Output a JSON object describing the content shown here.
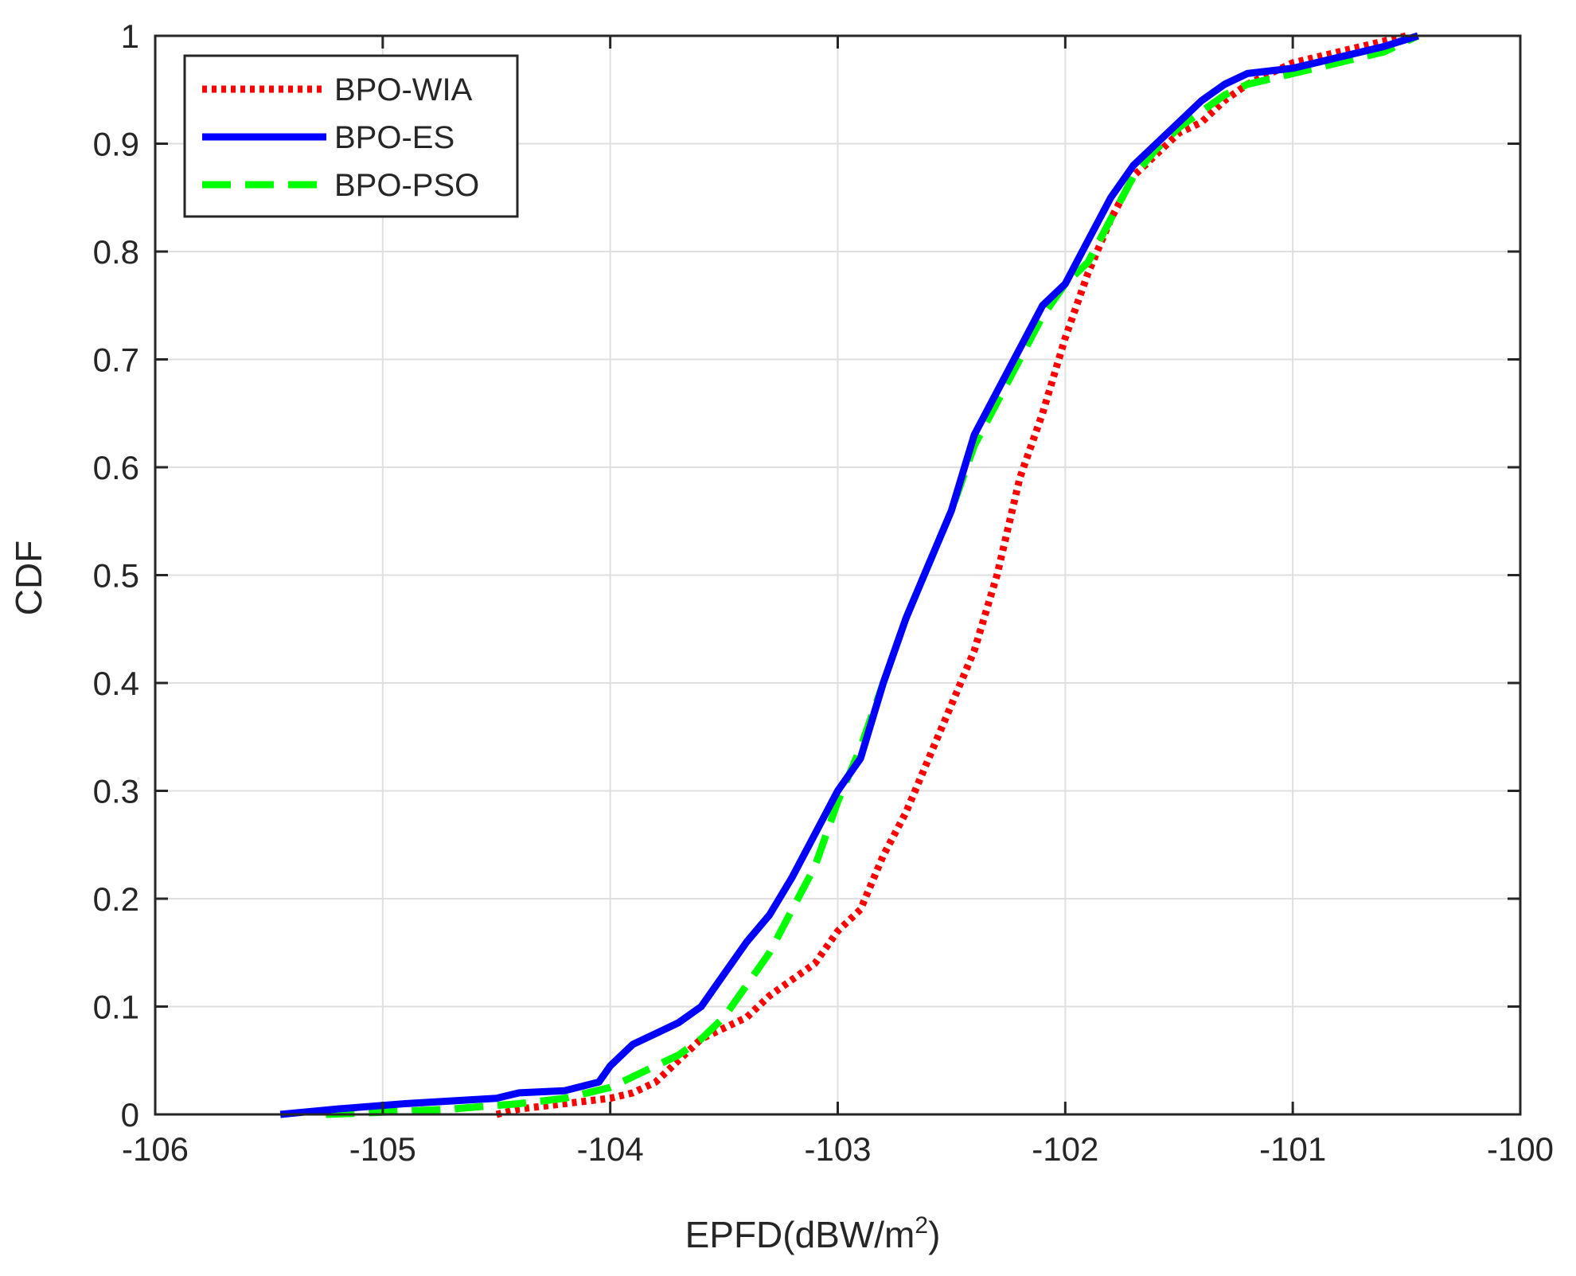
{
  "chart_data": {
    "type": "line",
    "title": "",
    "xlabel": "EPFD(dBW/m",
    "xlabel_superscript": "2",
    "xlabel_suffix": ")",
    "ylabel": "CDF",
    "xlim": [
      -106,
      -100
    ],
    "ylim": [
      0,
      1
    ],
    "xticks": [
      -106,
      -105,
      -104,
      -103,
      -102,
      -101,
      -100
    ],
    "xtick_labels": [
      "-106",
      "-105",
      "-104",
      "-103",
      "-102",
      "-101",
      "-100"
    ],
    "yticks": [
      0,
      0.1,
      0.2,
      0.3,
      0.4,
      0.5,
      0.6,
      0.7,
      0.8,
      0.9,
      1
    ],
    "ytick_labels": [
      "0",
      "0.1",
      "0.2",
      "0.3",
      "0.4",
      "0.5",
      "0.6",
      "0.7",
      "0.8",
      "0.9",
      "1"
    ],
    "grid": true,
    "legend_position": "top-left",
    "series": [
      {
        "name": "BPO-WIA",
        "color": "#ff0000",
        "style": "dotted",
        "x": [
          -104.5,
          -104.4,
          -104.2,
          -104.0,
          -103.9,
          -103.8,
          -103.7,
          -103.6,
          -103.5,
          -103.4,
          -103.3,
          -103.2,
          -103.1,
          -103.0,
          -102.9,
          -102.8,
          -102.7,
          -102.6,
          -102.5,
          -102.4,
          -102.3,
          -102.2,
          -102.1,
          -102.0,
          -101.9,
          -101.8,
          -101.7,
          -101.6,
          -101.5,
          -101.4,
          -101.3,
          -101.2,
          -101.1,
          -101.0,
          -100.8,
          -100.6,
          -100.5
        ],
        "y": [
          0,
          0.005,
          0.01,
          0.015,
          0.02,
          0.03,
          0.05,
          0.07,
          0.08,
          0.09,
          0.11,
          0.125,
          0.14,
          0.17,
          0.19,
          0.24,
          0.28,
          0.33,
          0.38,
          0.43,
          0.5,
          0.59,
          0.65,
          0.72,
          0.78,
          0.83,
          0.87,
          0.89,
          0.91,
          0.92,
          0.94,
          0.955,
          0.965,
          0.975,
          0.985,
          0.995,
          1.0
        ]
      },
      {
        "name": "BPO-ES",
        "color": "#0000ff",
        "style": "solid",
        "x": [
          -105.45,
          -105.2,
          -104.9,
          -104.5,
          -104.4,
          -104.2,
          -104.05,
          -104.0,
          -103.9,
          -103.8,
          -103.7,
          -103.6,
          -103.5,
          -103.4,
          -103.3,
          -103.2,
          -103.1,
          -103.0,
          -102.9,
          -102.8,
          -102.7,
          -102.6,
          -102.5,
          -102.4,
          -102.3,
          -102.2,
          -102.1,
          -102.0,
          -101.9,
          -101.8,
          -101.7,
          -101.6,
          -101.5,
          -101.4,
          -101.3,
          -101.2,
          -101.0,
          -100.8,
          -100.6,
          -100.45
        ],
        "y": [
          0,
          0.005,
          0.01,
          0.015,
          0.02,
          0.022,
          0.03,
          0.045,
          0.065,
          0.075,
          0.085,
          0.1,
          0.13,
          0.16,
          0.185,
          0.22,
          0.26,
          0.3,
          0.33,
          0.4,
          0.46,
          0.51,
          0.56,
          0.63,
          0.67,
          0.71,
          0.75,
          0.77,
          0.81,
          0.85,
          0.88,
          0.9,
          0.92,
          0.94,
          0.955,
          0.965,
          0.97,
          0.98,
          0.99,
          1.0
        ]
      },
      {
        "name": "BPO-PSO",
        "color": "#00ff00",
        "style": "dashed",
        "x": [
          -105.25,
          -105.0,
          -104.7,
          -104.4,
          -104.2,
          -104.0,
          -103.9,
          -103.8,
          -103.7,
          -103.6,
          -103.5,
          -103.4,
          -103.3,
          -103.2,
          -103.1,
          -103.0,
          -102.9,
          -102.8,
          -102.7,
          -102.6,
          -102.5,
          -102.4,
          -102.3,
          -102.2,
          -102.1,
          -102.0,
          -101.9,
          -101.8,
          -101.7,
          -101.6,
          -101.5,
          -101.4,
          -101.3,
          -101.2,
          -101.0,
          -100.8,
          -100.6,
          -100.45
        ],
        "y": [
          0,
          0.002,
          0.005,
          0.01,
          0.015,
          0.025,
          0.035,
          0.045,
          0.055,
          0.07,
          0.09,
          0.12,
          0.15,
          0.19,
          0.23,
          0.29,
          0.34,
          0.4,
          0.46,
          0.51,
          0.56,
          0.62,
          0.66,
          0.7,
          0.74,
          0.77,
          0.79,
          0.83,
          0.87,
          0.895,
          0.915,
          0.93,
          0.945,
          0.955,
          0.965,
          0.975,
          0.985,
          1.0
        ]
      }
    ]
  }
}
